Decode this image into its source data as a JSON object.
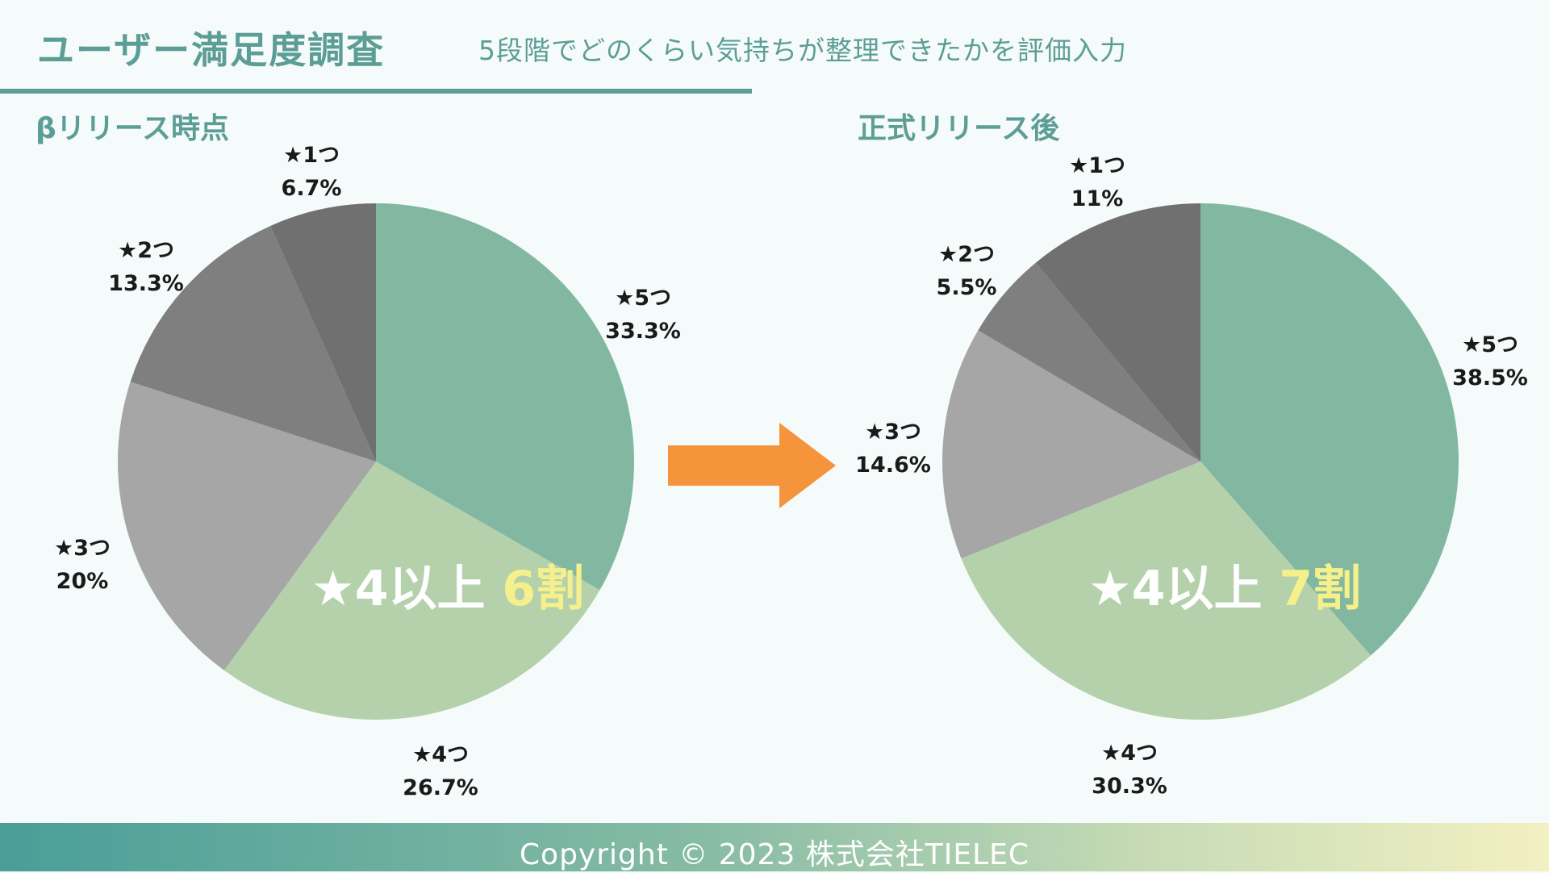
{
  "header": {
    "title": "ユーザー満足度調査",
    "subtitle": "5段階でどのくらい気持ちが整理できたかを評価入力"
  },
  "footer": {
    "copyright": "Copyright © 2023 株式会社TIELEC"
  },
  "colors": {
    "star5": "#82b8a1",
    "star4": "#b4d1ac",
    "star3": "#a6a6a6",
    "star2": "#7f7f7f",
    "star1": "#707070",
    "arrow": "#f5943a",
    "highlight": "#f6f08c",
    "accent": "#5c9e96"
  },
  "chart_data": [
    {
      "type": "pie",
      "title": "βリリース時点",
      "categories": [
        "★5つ",
        "★4つ",
        "★3つ",
        "★2つ",
        "★1つ"
      ],
      "values": [
        33.3,
        26.7,
        20,
        13.3,
        6.7
      ],
      "value_labels": [
        "33.3%",
        "26.7%",
        "20%",
        "13.3%",
        "6.7%"
      ],
      "annotation": {
        "text": "★4以上",
        "highlight": "6割"
      }
    },
    {
      "type": "pie",
      "title": "正式リリース後",
      "categories": [
        "★5つ",
        "★4つ",
        "★3つ",
        "★2つ",
        "★1つ"
      ],
      "values": [
        38.5,
        30.3,
        14.6,
        5.5,
        11
      ],
      "value_labels": [
        "38.5%",
        "30.3%",
        "14.6%",
        "5.5%",
        "11%"
      ],
      "annotation": {
        "text": "★4以上",
        "highlight": "7割"
      }
    }
  ]
}
